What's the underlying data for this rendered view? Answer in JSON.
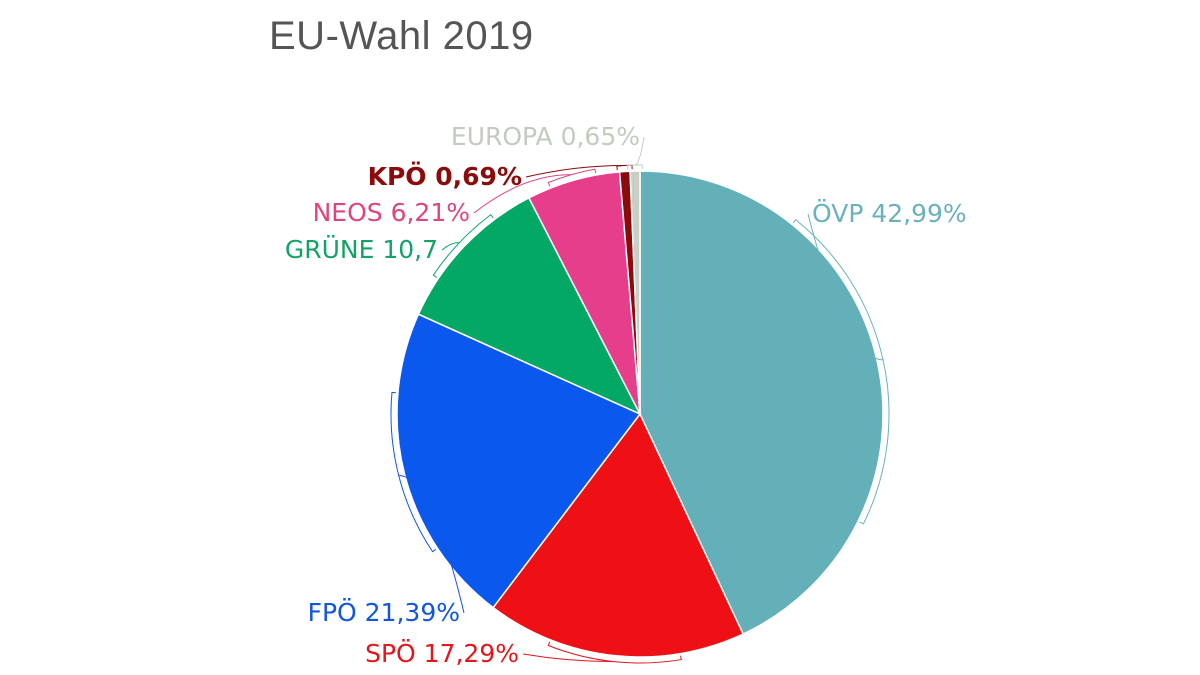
{
  "chart_data": {
    "type": "pie",
    "title": "EU-Wahl 2019",
    "slices": [
      {
        "label": "ÖVP 42,99%",
        "party": "ÖVP",
        "value": 42.99,
        "color": "#64b0b9",
        "label_color": "#6ab2bb"
      },
      {
        "label": "SPÖ 17,29%",
        "party": "SPÖ",
        "value": 17.29,
        "color": "#ef1015",
        "label_color": "#e4161c"
      },
      {
        "label": "FPÖ 21,39%",
        "party": "FPÖ",
        "value": 21.39,
        "color": "#0a58ee",
        "label_color": "#1155e0"
      },
      {
        "label": "GRÜNE 10,7",
        "party": "GRÜNE",
        "value": 10.7,
        "color": "#04a865",
        "label_color": "#12a367"
      },
      {
        "label": "NEOS 6,21%",
        "party": "NEOS",
        "value": 6.21,
        "color": "#e73e8c",
        "label_color": "#e0447f"
      },
      {
        "label": "KPÖ 0,69%",
        "party": "KPÖ",
        "value": 0.69,
        "color": "#8c0a0a",
        "label_color": "#8c0a0a"
      },
      {
        "label": "EUROPA 0,65%",
        "party": "EUROPA",
        "value": 0.65,
        "color": "#c9cfc4",
        "label_color": "#c3cbbf"
      }
    ]
  }
}
